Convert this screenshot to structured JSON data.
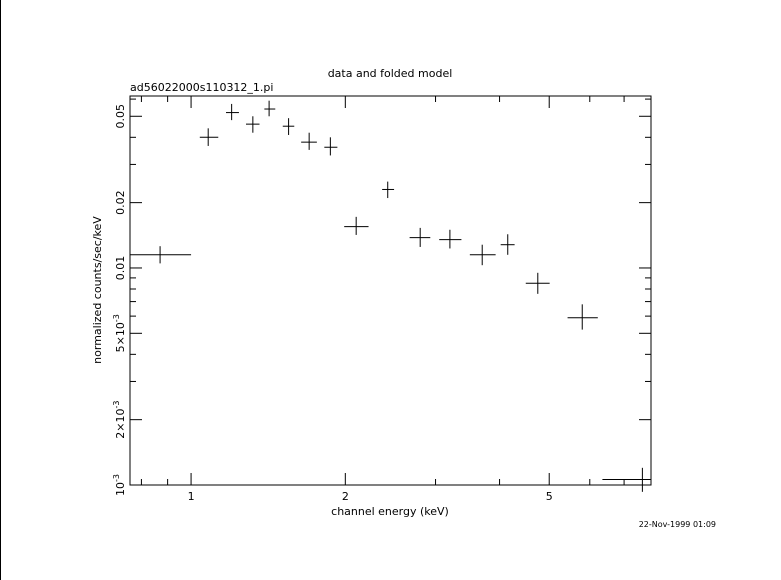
{
  "chart_data": {
    "type": "scatter",
    "title": "data and folded model",
    "subtitle": "ad56022000s110312_1.pi",
    "xlabel": "channel energy (keV)",
    "ylabel": "normalized counts/sec/keV",
    "timestamp": "22-Nov-1999 01:09",
    "x_scale": "log",
    "y_scale": "log",
    "xlim": [
      0.76,
      7.9
    ],
    "ylim": [
      0.001,
      0.062
    ],
    "x_ticks": [
      {
        "value": 1,
        "label": "1"
      },
      {
        "value": 2,
        "label": "2"
      },
      {
        "value": 5,
        "label": "5"
      }
    ],
    "y_ticks": [
      {
        "value": 0.001,
        "label": "10",
        "exp": "-3"
      },
      {
        "value": 0.002,
        "label": "2×10",
        "exp": "-3"
      },
      {
        "value": 0.005,
        "label": "5×10",
        "exp": "-3"
      },
      {
        "value": 0.01,
        "label": "0.01",
        "exp": ""
      },
      {
        "value": 0.02,
        "label": "0.02",
        "exp": ""
      },
      {
        "value": 0.05,
        "label": "0.05",
        "exp": ""
      }
    ],
    "grid": false,
    "series": [
      {
        "points": [
          {
            "x": 0.87,
            "xlo": 0.76,
            "xhi": 1.0,
            "y": 0.0115,
            "ylo": 0.0105,
            "yhi": 0.0126
          },
          {
            "x": 1.08,
            "xlo": 1.04,
            "xhi": 1.13,
            "y": 0.04,
            "ylo": 0.0365,
            "yhi": 0.044
          },
          {
            "x": 1.2,
            "xlo": 1.17,
            "xhi": 1.24,
            "y": 0.052,
            "ylo": 0.048,
            "yhi": 0.057
          },
          {
            "x": 1.32,
            "xlo": 1.28,
            "xhi": 1.36,
            "y": 0.046,
            "ylo": 0.042,
            "yhi": 0.05
          },
          {
            "x": 1.42,
            "xlo": 1.39,
            "xhi": 1.46,
            "y": 0.054,
            "ylo": 0.05,
            "yhi": 0.059
          },
          {
            "x": 1.55,
            "xlo": 1.51,
            "xhi": 1.59,
            "y": 0.045,
            "ylo": 0.041,
            "yhi": 0.049
          },
          {
            "x": 1.7,
            "xlo": 1.64,
            "xhi": 1.76,
            "y": 0.038,
            "ylo": 0.035,
            "yhi": 0.042
          },
          {
            "x": 1.87,
            "xlo": 1.82,
            "xhi": 1.93,
            "y": 0.036,
            "ylo": 0.033,
            "yhi": 0.04
          },
          {
            "x": 2.1,
            "xlo": 1.99,
            "xhi": 2.22,
            "y": 0.0155,
            "ylo": 0.0142,
            "yhi": 0.0172
          },
          {
            "x": 2.42,
            "xlo": 2.36,
            "xhi": 2.49,
            "y": 0.023,
            "ylo": 0.021,
            "yhi": 0.025
          },
          {
            "x": 2.8,
            "xlo": 2.67,
            "xhi": 2.93,
            "y": 0.0138,
            "ylo": 0.0125,
            "yhi": 0.0153
          },
          {
            "x": 3.2,
            "xlo": 3.05,
            "xhi": 3.37,
            "y": 0.0135,
            "ylo": 0.0123,
            "yhi": 0.015
          },
          {
            "x": 3.7,
            "xlo": 3.5,
            "xhi": 3.93,
            "y": 0.0115,
            "ylo": 0.0103,
            "yhi": 0.0128
          },
          {
            "x": 4.15,
            "xlo": 4.02,
            "xhi": 4.28,
            "y": 0.0128,
            "ylo": 0.0115,
            "yhi": 0.0143
          },
          {
            "x": 4.75,
            "xlo": 4.5,
            "xhi": 5.01,
            "y": 0.0085,
            "ylo": 0.0076,
            "yhi": 0.0095
          },
          {
            "x": 5.8,
            "xlo": 5.43,
            "xhi": 6.22,
            "y": 0.0059,
            "ylo": 0.0052,
            "yhi": 0.0068
          },
          {
            "x": 7.6,
            "xlo": 6.35,
            "xhi": 7.9,
            "y": 0.00106,
            "ylo": 0.00093,
            "yhi": 0.0012
          }
        ]
      }
    ]
  }
}
